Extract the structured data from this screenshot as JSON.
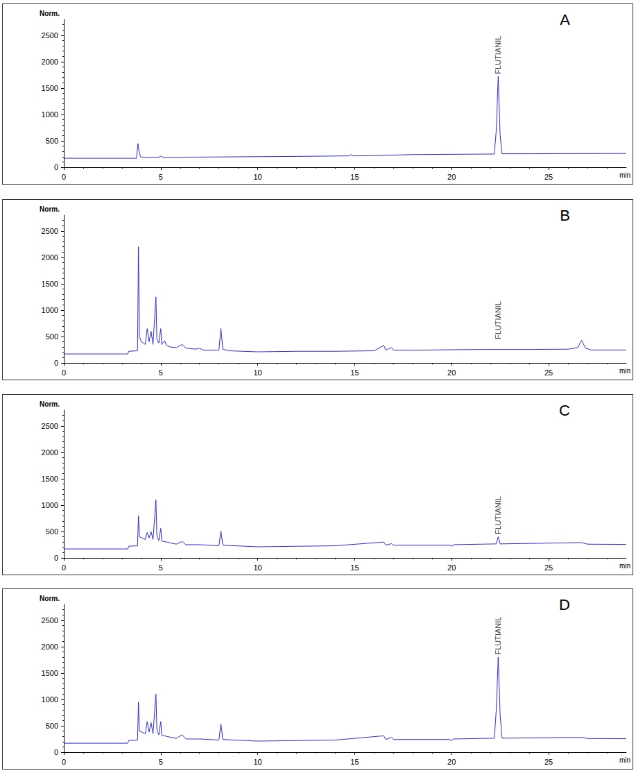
{
  "chart_data": [
    {
      "type": "line",
      "title": "A",
      "x_label": "min",
      "y_label": "Norm.",
      "color": "#2b2bd6",
      "grid": false,
      "xlim": [
        0,
        29
      ],
      "ylim": [
        0,
        2800
      ],
      "xticks": [
        0,
        5,
        10,
        15,
        20,
        25
      ],
      "yticks": [
        0,
        500,
        1000,
        1500,
        2000,
        2500
      ],
      "x": [
        0,
        3.75,
        3.82,
        3.88,
        3.95,
        4.1,
        4.9,
        5.0,
        5.1,
        6,
        8,
        10,
        12,
        14.7,
        14.8,
        14.9,
        16,
        18,
        20,
        22.2,
        22.3,
        22.4,
        22.5,
        22.6,
        24,
        26,
        28,
        29
      ],
      "values": [
        170,
        170,
        450,
        300,
        200,
        185,
        190,
        210,
        190,
        190,
        195,
        200,
        205,
        215,
        240,
        215,
        220,
        240,
        245,
        250,
        700,
        1720,
        600,
        255,
        255,
        258,
        260,
        260
      ],
      "annotations": [
        {
          "text": "FLUTIANIL",
          "x": 22.4,
          "y": 1740
        }
      ]
    },
    {
      "type": "line",
      "title": "B",
      "x_label": "min",
      "y_label": "Norm.",
      "color": "#2b2bd6",
      "grid": false,
      "xlim": [
        0,
        29
      ],
      "ylim": [
        0,
        2800
      ],
      "xticks": [
        0,
        5,
        10,
        15,
        20,
        25
      ],
      "yticks": [
        0,
        500,
        1000,
        1500,
        2000,
        2500
      ],
      "x": [
        0,
        3.3,
        3.35,
        3.8,
        3.85,
        3.9,
        4.0,
        4.2,
        4.3,
        4.4,
        4.5,
        4.6,
        4.75,
        4.8,
        4.9,
        5.0,
        5.05,
        5.2,
        5.3,
        5.5,
        5.8,
        6.1,
        6.3,
        6.8,
        7.0,
        7.2,
        8.0,
        8.1,
        8.2,
        8.5,
        10,
        12,
        14,
        16,
        16.5,
        16.6,
        16.9,
        17,
        18,
        20,
        22,
        24,
        26,
        26.5,
        26.7,
        26.9,
        27.2,
        29
      ],
      "values": [
        170,
        170,
        220,
        230,
        2200,
        500,
        400,
        350,
        650,
        400,
        600,
        350,
        1250,
        450,
        380,
        650,
        350,
        420,
        330,
        300,
        290,
        350,
        280,
        260,
        280,
        240,
        240,
        650,
        260,
        230,
        210,
        220,
        220,
        230,
        330,
        240,
        290,
        240,
        240,
        250,
        255,
        255,
        260,
        290,
        430,
        280,
        245,
        245
      ],
      "annotations": [
        {
          "text": "FLUTIANIL",
          "x": 22.4,
          "y": 420
        }
      ]
    },
    {
      "type": "line",
      "title": "C",
      "x_label": "min",
      "y_label": "Norm.",
      "color": "#2b2bd6",
      "grid": false,
      "xlim": [
        0,
        29
      ],
      "ylim": [
        0,
        2800
      ],
      "xticks": [
        0,
        5,
        10,
        15,
        20,
        25
      ],
      "yticks": [
        0,
        500,
        1000,
        1500,
        2000,
        2500
      ],
      "x": [
        0,
        3.3,
        3.35,
        3.8,
        3.85,
        3.9,
        4.2,
        4.3,
        4.4,
        4.5,
        4.6,
        4.75,
        4.8,
        4.9,
        5.0,
        5.05,
        5.3,
        5.8,
        6.1,
        6.3,
        7,
        8.0,
        8.1,
        8.2,
        10,
        12,
        14,
        16.5,
        16.6,
        16.9,
        17,
        19.9,
        20,
        20.1,
        22.3,
        22.4,
        22.5,
        26.7,
        27,
        29
      ],
      "values": [
        170,
        170,
        220,
        230,
        800,
        400,
        350,
        480,
        380,
        500,
        350,
        1100,
        420,
        330,
        560,
        320,
        300,
        260,
        310,
        250,
        250,
        230,
        510,
        240,
        210,
        220,
        230,
        300,
        240,
        270,
        240,
        240,
        220,
        250,
        265,
        400,
        265,
        290,
        260,
        255
      ],
      "annotations": [
        {
          "text": "FLUTIANIL",
          "x": 22.4,
          "y": 420
        }
      ]
    },
    {
      "type": "line",
      "title": "D",
      "x_label": "min",
      "y_label": "Norm.",
      "color": "#2b2bd6",
      "grid": false,
      "xlim": [
        0,
        29
      ],
      "ylim": [
        0,
        2800
      ],
      "xticks": [
        0,
        5,
        10,
        15,
        20,
        25
      ],
      "yticks": [
        0,
        500,
        1000,
        1500,
        2000,
        2500
      ],
      "x": [
        0,
        3.3,
        3.35,
        3.8,
        3.85,
        3.9,
        4.2,
        4.3,
        4.4,
        4.5,
        4.6,
        4.75,
        4.8,
        4.9,
        5.0,
        5.05,
        5.3,
        5.8,
        6.1,
        6.3,
        7,
        8.0,
        8.1,
        8.2,
        10,
        12,
        14,
        16.5,
        16.6,
        16.9,
        17,
        19.9,
        20,
        20.1,
        22.2,
        22.3,
        22.4,
        22.5,
        22.6,
        26.7,
        27,
        29
      ],
      "values": [
        170,
        170,
        220,
        230,
        950,
        400,
        350,
        580,
        380,
        560,
        350,
        1100,
        420,
        330,
        580,
        320,
        300,
        260,
        330,
        250,
        250,
        230,
        540,
        240,
        210,
        220,
        230,
        310,
        240,
        280,
        240,
        240,
        220,
        250,
        265,
        800,
        1800,
        700,
        265,
        280,
        260,
        255
      ],
      "annotations": [
        {
          "text": "FLUTIANIL",
          "x": 22.4,
          "y": 1820
        }
      ]
    }
  ]
}
